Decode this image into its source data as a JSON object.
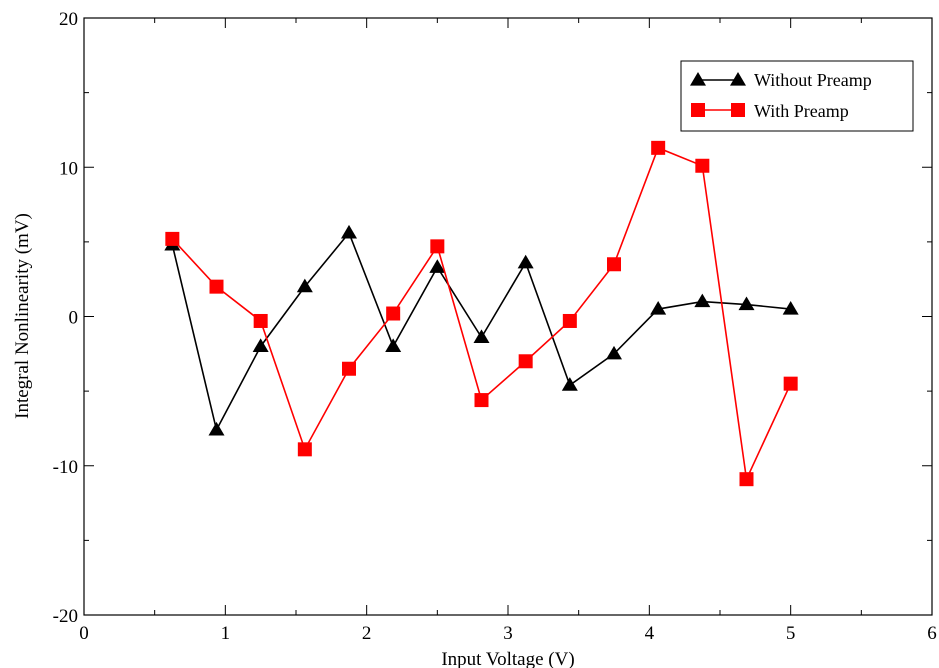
{
  "chart_data": {
    "type": "line",
    "title": "",
    "xlabel": "Input Voltage (V)",
    "ylabel": "Integral Nonlinearity  (mV)",
    "xlim": [
      0,
      6
    ],
    "ylim": [
      -20,
      20
    ],
    "xticks": [
      0,
      1,
      2,
      3,
      4,
      5,
      6
    ],
    "yticks": [
      -20,
      -10,
      0,
      10,
      20
    ],
    "xtick_labels": [
      "0",
      "1",
      "2",
      "3",
      "4",
      "5",
      "6"
    ],
    "ytick_labels": [
      "-20",
      "-10",
      "0",
      "10",
      "20"
    ],
    "grid": false,
    "legend_position": "top-right",
    "series": [
      {
        "name": "Without Preamp",
        "color": "#000000",
        "marker": "triangle",
        "x": [
          0.625,
          0.9375,
          1.25,
          1.5625,
          1.875,
          2.1875,
          2.5,
          2.8125,
          3.125,
          3.4375,
          3.75,
          4.0625,
          4.375,
          4.6875,
          5.0
        ],
        "y": [
          4.8,
          -7.6,
          -2.0,
          2.0,
          5.6,
          -2.0,
          3.3,
          -1.4,
          3.6,
          -4.6,
          -2.5,
          0.5,
          1.0,
          0.8,
          0.5
        ]
      },
      {
        "name": "With Preamp",
        "color": "#ff0000",
        "marker": "square",
        "x": [
          0.625,
          0.9375,
          1.25,
          1.5625,
          1.875,
          2.1875,
          2.5,
          2.8125,
          3.125,
          3.4375,
          3.75,
          4.0625,
          4.375,
          4.6875,
          5.0
        ],
        "y": [
          5.2,
          2.0,
          -0.3,
          -8.9,
          -3.5,
          0.2,
          4.7,
          -5.6,
          -3.0,
          -0.3,
          3.5,
          11.3,
          10.1,
          -10.9,
          -4.5
        ]
      }
    ]
  }
}
